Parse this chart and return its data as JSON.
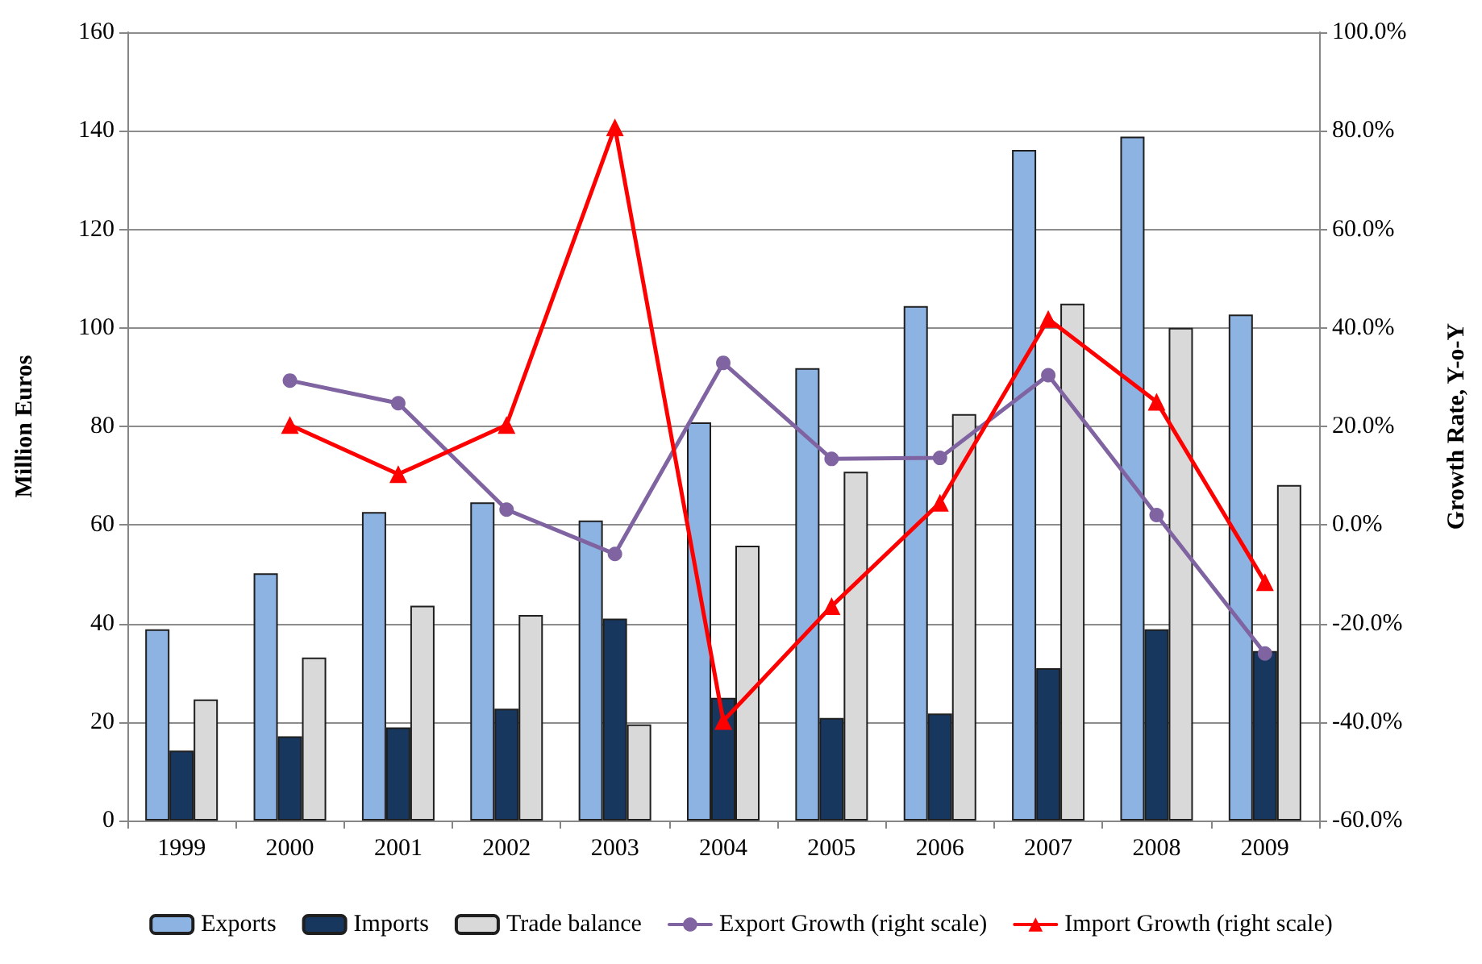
{
  "chart_data": {
    "type": "bar",
    "categories": [
      "1999",
      "2000",
      "2001",
      "2002",
      "2003",
      "2004",
      "2005",
      "2006",
      "2007",
      "2008",
      "2009"
    ],
    "ylabel": "Million Euros",
    "y2label": "Growth Rate, Y-o-Y",
    "ylim": [
      0,
      160
    ],
    "yticks": [
      0,
      20,
      40,
      60,
      80,
      100,
      120,
      140,
      160
    ],
    "y2lim": [
      -60,
      100
    ],
    "y2ticks": [
      {
        "value": -60,
        "label": "-60.0%"
      },
      {
        "value": -40,
        "label": "-40.0%"
      },
      {
        "value": -20,
        "label": "-20.0%"
      },
      {
        "value": 0,
        "label": "0.0%"
      },
      {
        "value": 20,
        "label": "20.0%"
      },
      {
        "value": 40,
        "label": "40.0%"
      },
      {
        "value": 60,
        "label": "60.0%"
      },
      {
        "value": 80,
        "label": "80.0%"
      },
      {
        "value": 100,
        "label": "100.0%"
      }
    ],
    "grid": "y",
    "legend": "bottom",
    "series": [
      {
        "name": "Exports",
        "color": "#8db3e2",
        "values": [
          38.8,
          50.2,
          62.6,
          64.6,
          60.9,
          80.8,
          91.8,
          104.4,
          136.1,
          138.8,
          102.7
        ]
      },
      {
        "name": "Imports",
        "color": "#17375e",
        "values": [
          14.2,
          17.1,
          18.9,
          22.7,
          41,
          24.9,
          20.8,
          21.7,
          30.9,
          38.8,
          34.4
        ]
      },
      {
        "name": "Trade balance",
        "color": "#d9d9d9",
        "values": [
          24.6,
          33.1,
          43.6,
          41.7,
          19.5,
          55.8,
          70.8,
          82.5,
          104.9,
          100,
          68.1
        ]
      },
      {
        "name": "Export Growth (right scale)",
        "type": "line",
        "axis": "y2",
        "marker": "circle",
        "color": "#8064a2",
        "values": [
          null,
          29.3,
          24.7,
          3.1,
          -5.9,
          32.9,
          13.4,
          13.6,
          30.4,
          2,
          -26.1
        ]
      },
      {
        "name": "Import Growth (right scale)",
        "type": "line",
        "axis": "y2",
        "marker": "triangle",
        "color": "#ff0000",
        "values": [
          null,
          20.3,
          10.3,
          20.3,
          80.7,
          -39.8,
          -16.5,
          4.5,
          41.8,
          25,
          -11.6
        ]
      }
    ]
  }
}
